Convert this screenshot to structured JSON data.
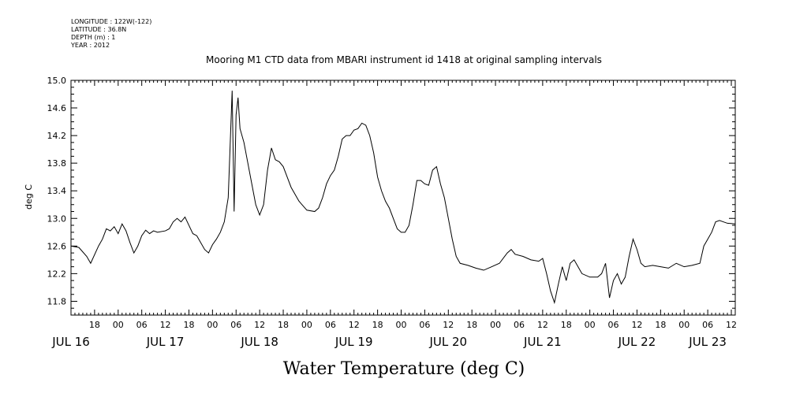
{
  "header": {
    "longitude": "LONGITUDE : 122W(-122)",
    "latitude": "LATITUDE : 36.8N",
    "depth": "DEPTH (m) : 1",
    "year": "YEAR : 2012"
  },
  "chart_data": {
    "type": "line",
    "title": "Mooring M1 CTD data from MBARI instrument id 1418 at original sampling intervals",
    "xlabel": "Water Temperature (deg C)",
    "ylabel": "deg C",
    "ylim": [
      11.6,
      15.0
    ],
    "yticks": [
      11.8,
      12.2,
      12.6,
      13.0,
      13.4,
      13.8,
      14.2,
      14.6,
      15.0
    ],
    "ytick_labels": [
      "11.8",
      "12.2",
      "12.6",
      "13.0",
      "13.4",
      "13.8",
      "14.2",
      "14.6",
      "15.0"
    ],
    "xlim": [
      "2012-07-16T12:00",
      "2012-07-23T13:00"
    ],
    "hour_ticks": [
      {
        "t": "2012-07-16T18:00",
        "label": "18"
      },
      {
        "t": "2012-07-17T00:00",
        "label": "00"
      },
      {
        "t": "2012-07-17T06:00",
        "label": "06"
      },
      {
        "t": "2012-07-17T12:00",
        "label": "12"
      },
      {
        "t": "2012-07-17T18:00",
        "label": "18"
      },
      {
        "t": "2012-07-18T00:00",
        "label": "00"
      },
      {
        "t": "2012-07-18T06:00",
        "label": "06"
      },
      {
        "t": "2012-07-18T12:00",
        "label": "12"
      },
      {
        "t": "2012-07-18T18:00",
        "label": "18"
      },
      {
        "t": "2012-07-19T00:00",
        "label": "00"
      },
      {
        "t": "2012-07-19T06:00",
        "label": "06"
      },
      {
        "t": "2012-07-19T12:00",
        "label": "12"
      },
      {
        "t": "2012-07-19T18:00",
        "label": "18"
      },
      {
        "t": "2012-07-20T00:00",
        "label": "00"
      },
      {
        "t": "2012-07-20T06:00",
        "label": "06"
      },
      {
        "t": "2012-07-20T12:00",
        "label": "12"
      },
      {
        "t": "2012-07-20T18:00",
        "label": "18"
      },
      {
        "t": "2012-07-21T00:00",
        "label": "00"
      },
      {
        "t": "2012-07-21T06:00",
        "label": "06"
      },
      {
        "t": "2012-07-21T12:00",
        "label": "12"
      },
      {
        "t": "2012-07-21T18:00",
        "label": "18"
      },
      {
        "t": "2012-07-22T00:00",
        "label": "00"
      },
      {
        "t": "2012-07-22T06:00",
        "label": "06"
      },
      {
        "t": "2012-07-22T12:00",
        "label": "12"
      },
      {
        "t": "2012-07-22T18:00",
        "label": "18"
      },
      {
        "t": "2012-07-23T00:00",
        "label": "00"
      },
      {
        "t": "2012-07-23T06:00",
        "label": "06"
      },
      {
        "t": "2012-07-23T12:00",
        "label": "12"
      }
    ],
    "day_labels": [
      {
        "t": "2012-07-16T12:00",
        "label": "JUL 16"
      },
      {
        "t": "2012-07-17T12:00",
        "label": "JUL 17"
      },
      {
        "t": "2012-07-18T12:00",
        "label": "JUL 18"
      },
      {
        "t": "2012-07-19T12:00",
        "label": "JUL 19"
      },
      {
        "t": "2012-07-20T12:00",
        "label": "JUL 20"
      },
      {
        "t": "2012-07-21T12:00",
        "label": "JUL 21"
      },
      {
        "t": "2012-07-22T12:00",
        "label": "JUL 22"
      },
      {
        "t": "2012-07-23T06:00",
        "label": "JUL 23"
      }
    ],
    "grid": false,
    "series": [
      {
        "color": "#000000",
        "points": [
          [
            "2012-07-16T12:00",
            12.6
          ],
          [
            "2012-07-16T14:00",
            12.58
          ],
          [
            "2012-07-16T16:00",
            12.45
          ],
          [
            "2012-07-16T17:00",
            12.35
          ],
          [
            "2012-07-16T19:00",
            12.6
          ],
          [
            "2012-07-16T20:00",
            12.7
          ],
          [
            "2012-07-16T21:00",
            12.85
          ],
          [
            "2012-07-16T22:00",
            12.82
          ],
          [
            "2012-07-16T23:00",
            12.88
          ],
          [
            "2012-07-17T00:00",
            12.78
          ],
          [
            "2012-07-17T01:00",
            12.92
          ],
          [
            "2012-07-17T02:00",
            12.82
          ],
          [
            "2012-07-17T03:00",
            12.65
          ],
          [
            "2012-07-17T04:00",
            12.5
          ],
          [
            "2012-07-17T05:00",
            12.6
          ],
          [
            "2012-07-17T06:00",
            12.75
          ],
          [
            "2012-07-17T07:00",
            12.83
          ],
          [
            "2012-07-17T08:00",
            12.78
          ],
          [
            "2012-07-17T09:00",
            12.82
          ],
          [
            "2012-07-17T10:00",
            12.8
          ],
          [
            "2012-07-17T12:00",
            12.82
          ],
          [
            "2012-07-17T13:00",
            12.85
          ],
          [
            "2012-07-17T14:00",
            12.95
          ],
          [
            "2012-07-17T15:00",
            13.0
          ],
          [
            "2012-07-17T16:00",
            12.95
          ],
          [
            "2012-07-17T17:00",
            13.02
          ],
          [
            "2012-07-17T18:00",
            12.9
          ],
          [
            "2012-07-17T19:00",
            12.78
          ],
          [
            "2012-07-17T20:00",
            12.75
          ],
          [
            "2012-07-17T21:00",
            12.65
          ],
          [
            "2012-07-17T22:00",
            12.55
          ],
          [
            "2012-07-17T23:00",
            12.5
          ],
          [
            "2012-07-18T00:00",
            12.62
          ],
          [
            "2012-07-18T01:00",
            12.7
          ],
          [
            "2012-07-18T02:00",
            12.8
          ],
          [
            "2012-07-18T03:00",
            12.95
          ],
          [
            "2012-07-18T04:00",
            13.3
          ],
          [
            "2012-07-18T05:00",
            14.85
          ],
          [
            "2012-07-18T05:30",
            13.1
          ],
          [
            "2012-07-18T06:00",
            14.5
          ],
          [
            "2012-07-18T06:30",
            14.75
          ],
          [
            "2012-07-18T07:00",
            14.3
          ],
          [
            "2012-07-18T08:00",
            14.1
          ],
          [
            "2012-07-18T09:00",
            13.8
          ],
          [
            "2012-07-18T10:00",
            13.5
          ],
          [
            "2012-07-18T11:00",
            13.2
          ],
          [
            "2012-07-18T12:00",
            13.05
          ],
          [
            "2012-07-18T13:00",
            13.2
          ],
          [
            "2012-07-18T14:00",
            13.7
          ],
          [
            "2012-07-18T15:00",
            14.02
          ],
          [
            "2012-07-18T16:00",
            13.85
          ],
          [
            "2012-07-18T17:00",
            13.82
          ],
          [
            "2012-07-18T18:00",
            13.75
          ],
          [
            "2012-07-18T19:00",
            13.6
          ],
          [
            "2012-07-18T20:00",
            13.45
          ],
          [
            "2012-07-18T22:00",
            13.25
          ],
          [
            "2012-07-19T00:00",
            13.12
          ],
          [
            "2012-07-19T02:00",
            13.1
          ],
          [
            "2012-07-19T03:00",
            13.15
          ],
          [
            "2012-07-19T04:00",
            13.3
          ],
          [
            "2012-07-19T05:00",
            13.5
          ],
          [
            "2012-07-19T06:00",
            13.62
          ],
          [
            "2012-07-19T07:00",
            13.7
          ],
          [
            "2012-07-19T08:00",
            13.9
          ],
          [
            "2012-07-19T09:00",
            14.15
          ],
          [
            "2012-07-19T10:00",
            14.2
          ],
          [
            "2012-07-19T11:00",
            14.2
          ],
          [
            "2012-07-19T12:00",
            14.28
          ],
          [
            "2012-07-19T13:00",
            14.3
          ],
          [
            "2012-07-19T14:00",
            14.38
          ],
          [
            "2012-07-19T15:00",
            14.35
          ],
          [
            "2012-07-19T16:00",
            14.2
          ],
          [
            "2012-07-19T17:00",
            13.95
          ],
          [
            "2012-07-19T18:00",
            13.6
          ],
          [
            "2012-07-19T19:00",
            13.4
          ],
          [
            "2012-07-19T20:00",
            13.25
          ],
          [
            "2012-07-19T21:00",
            13.15
          ],
          [
            "2012-07-19T22:00",
            13.0
          ],
          [
            "2012-07-19T23:00",
            12.85
          ],
          [
            "2012-07-20T00:00",
            12.8
          ],
          [
            "2012-07-20T01:00",
            12.8
          ],
          [
            "2012-07-20T02:00",
            12.9
          ],
          [
            "2012-07-20T03:00",
            13.2
          ],
          [
            "2012-07-20T04:00",
            13.55
          ],
          [
            "2012-07-20T05:00",
            13.55
          ],
          [
            "2012-07-20T06:00",
            13.5
          ],
          [
            "2012-07-20T07:00",
            13.48
          ],
          [
            "2012-07-20T08:00",
            13.7
          ],
          [
            "2012-07-20T09:00",
            13.75
          ],
          [
            "2012-07-20T10:00",
            13.5
          ],
          [
            "2012-07-20T11:00",
            13.3
          ],
          [
            "2012-07-20T12:00",
            13.0
          ],
          [
            "2012-07-20T13:00",
            12.7
          ],
          [
            "2012-07-20T14:00",
            12.45
          ],
          [
            "2012-07-20T15:00",
            12.35
          ],
          [
            "2012-07-20T17:00",
            12.32
          ],
          [
            "2012-07-20T19:00",
            12.28
          ],
          [
            "2012-07-20T21:00",
            12.25
          ],
          [
            "2012-07-20T23:00",
            12.3
          ],
          [
            "2012-07-21T01:00",
            12.35
          ],
          [
            "2012-07-21T03:00",
            12.5
          ],
          [
            "2012-07-21T04:00",
            12.55
          ],
          [
            "2012-07-21T05:00",
            12.48
          ],
          [
            "2012-07-21T07:00",
            12.45
          ],
          [
            "2012-07-21T09:00",
            12.4
          ],
          [
            "2012-07-21T11:00",
            12.38
          ],
          [
            "2012-07-21T12:00",
            12.42
          ],
          [
            "2012-07-21T13:00",
            12.2
          ],
          [
            "2012-07-21T14:00",
            11.95
          ],
          [
            "2012-07-21T15:00",
            11.78
          ],
          [
            "2012-07-21T16:00",
            12.05
          ],
          [
            "2012-07-21T17:00",
            12.3
          ],
          [
            "2012-07-21T18:00",
            12.1
          ],
          [
            "2012-07-21T19:00",
            12.35
          ],
          [
            "2012-07-21T20:00",
            12.4
          ],
          [
            "2012-07-21T21:00",
            12.3
          ],
          [
            "2012-07-21T22:00",
            12.2
          ],
          [
            "2012-07-22T00:00",
            12.15
          ],
          [
            "2012-07-22T02:00",
            12.15
          ],
          [
            "2012-07-22T03:00",
            12.2
          ],
          [
            "2012-07-22T04:00",
            12.35
          ],
          [
            "2012-07-22T05:00",
            11.85
          ],
          [
            "2012-07-22T06:00",
            12.1
          ],
          [
            "2012-07-22T07:00",
            12.2
          ],
          [
            "2012-07-22T08:00",
            12.05
          ],
          [
            "2012-07-22T09:00",
            12.15
          ],
          [
            "2012-07-22T10:00",
            12.45
          ],
          [
            "2012-07-22T11:00",
            12.7
          ],
          [
            "2012-07-22T12:00",
            12.55
          ],
          [
            "2012-07-22T13:00",
            12.35
          ],
          [
            "2012-07-22T14:00",
            12.3
          ],
          [
            "2012-07-22T16:00",
            12.32
          ],
          [
            "2012-07-22T18:00",
            12.3
          ],
          [
            "2012-07-22T20:00",
            12.28
          ],
          [
            "2012-07-22T22:00",
            12.35
          ],
          [
            "2012-07-23T00:00",
            12.3
          ],
          [
            "2012-07-23T02:00",
            12.32
          ],
          [
            "2012-07-23T04:00",
            12.35
          ],
          [
            "2012-07-23T05:00",
            12.6
          ],
          [
            "2012-07-23T06:00",
            12.7
          ],
          [
            "2012-07-23T07:00",
            12.8
          ],
          [
            "2012-07-23T08:00",
            12.95
          ],
          [
            "2012-07-23T09:00",
            12.97
          ],
          [
            "2012-07-23T10:00",
            12.95
          ],
          [
            "2012-07-23T11:00",
            12.93
          ],
          [
            "2012-07-23T13:00",
            12.92
          ]
        ]
      }
    ]
  }
}
